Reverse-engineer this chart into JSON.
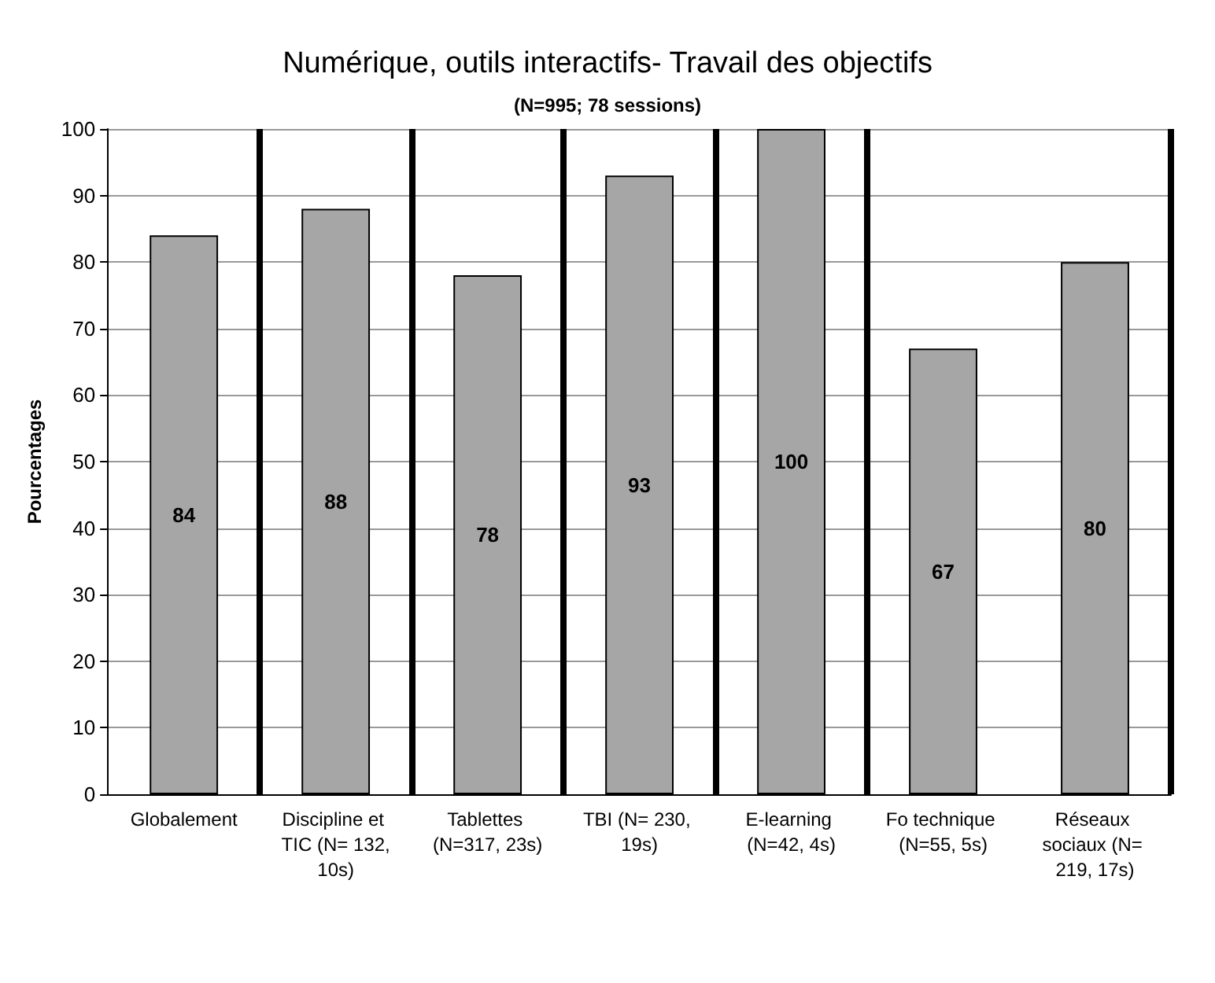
{
  "chart_data": {
    "type": "bar",
    "title": "Numérique, outils interactifs- Travail des objectifs",
    "subtitle": "(N=995; 78 sessions)",
    "ylabel": "Pourcentages",
    "categories": [
      "Globalement",
      "Discipline et TIC (N= 132,10s)",
      "Tablettes (N=317, 23s)",
      "TBI (N= 230, 19s)",
      "E-learning (N=42, 4s)",
      "Fo technique (N=55, 5s)",
      "Réseaux sociaux (N= 219, 17s)"
    ],
    "values": [
      84,
      88,
      78,
      93,
      100,
      67,
      80
    ],
    "color": "#a6a6a6",
    "ylim": [
      0,
      100
    ],
    "yticks": [
      0,
      10,
      20,
      30,
      40,
      50,
      60,
      70,
      80,
      90,
      100
    ],
    "grid": "y",
    "data_labels": true
  }
}
